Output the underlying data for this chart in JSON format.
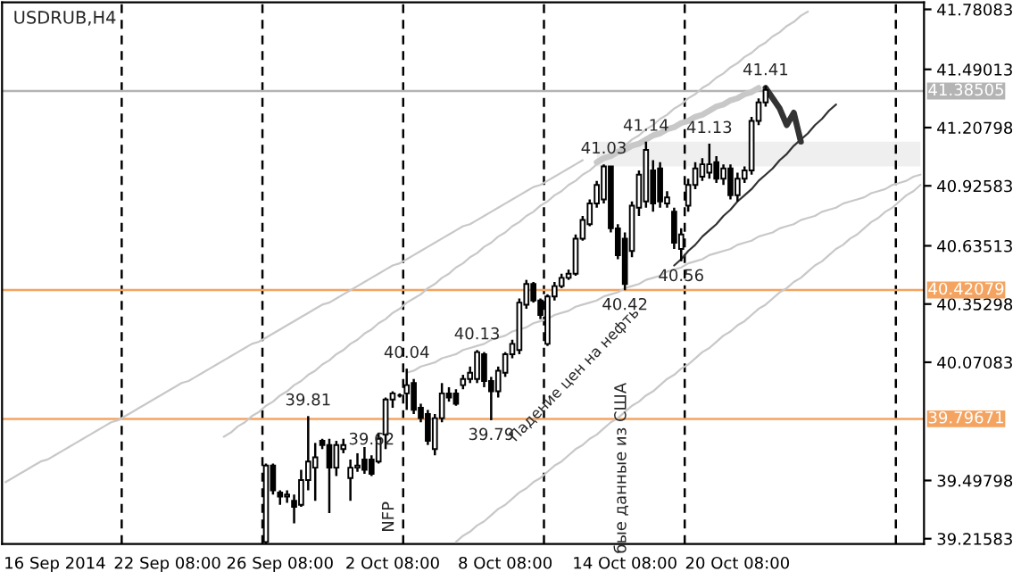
{
  "chart_data": {
    "type": "candlestick",
    "title": "USDRUB,H4",
    "categories": [
      null,
      null,
      null,
      null,
      null,
      null,
      null,
      "16 Sep 2014",
      null,
      null,
      null,
      null,
      null,
      null,
      null,
      null,
      null,
      null,
      null,
      null,
      null,
      null,
      null,
      "22 Sep 08:00",
      null,
      null,
      null,
      null,
      null,
      null,
      null,
      null,
      null,
      null,
      null,
      null,
      null,
      null,
      null,
      "26 Sep 08:00",
      null,
      null,
      null,
      null,
      null,
      null,
      null,
      null,
      null,
      null,
      null,
      null,
      null,
      null,
      null,
      "2 Oct 08:00",
      null,
      null,
      null,
      null,
      null,
      null,
      null,
      null,
      null,
      null,
      null,
      null,
      null,
      null,
      null,
      "8 Oct 08:00",
      null,
      null,
      null,
      null,
      null,
      null,
      null,
      null,
      null,
      null,
      null,
      null,
      null,
      null,
      null,
      null,
      "14 Oct 08:00",
      null,
      null,
      null,
      null,
      null,
      null,
      null,
      null,
      null,
      null,
      null,
      null,
      null,
      null,
      null,
      "20 Oct 08:00",
      null,
      null,
      null,
      null,
      null,
      null,
      null,
      null,
      null,
      null,
      null,
      null,
      null,
      null,
      null,
      null,
      null,
      null,
      null,
      null,
      null,
      null,
      null,
      null,
      null,
      null
    ],
    "ohlc": [
      null,
      null,
      null,
      null,
      null,
      null,
      null,
      null,
      null,
      null,
      null,
      null,
      null,
      null,
      null,
      null,
      null,
      null,
      null,
      null,
      null,
      null,
      null,
      null,
      null,
      null,
      null,
      null,
      null,
      null,
      null,
      null,
      null,
      null,
      null,
      null,
      null,
      [
        39.2,
        39.58,
        39.19,
        39.57
      ],
      [
        39.57,
        39.58,
        39.43,
        39.45
      ],
      [
        39.44,
        39.45,
        39.38,
        39.42
      ],
      [
        39.42,
        39.45,
        39.39,
        39.43
      ],
      [
        39.4,
        39.43,
        39.29,
        39.37
      ],
      [
        39.38,
        39.55,
        39.37,
        39.5
      ],
      [
        39.5,
        39.81,
        39.45,
        39.59
      ],
      [
        39.56,
        39.68,
        39.4,
        39.61
      ],
      [
        39.69,
        39.7,
        39.65,
        39.67
      ],
      [
        39.67,
        39.7,
        39.34,
        39.56
      ],
      [
        39.56,
        39.69,
        39.52,
        39.67
      ],
      [
        39.65,
        39.7,
        39.63,
        39.67
      ],
      [
        39.51,
        39.6,
        39.4,
        39.56
      ],
      [
        39.56,
        39.63,
        39.54,
        39.57
      ],
      [
        39.6,
        39.66,
        39.53,
        39.55
      ],
      [
        39.6,
        39.62,
        39.52,
        39.53
      ],
      [
        39.59,
        39.73,
        39.58,
        39.7
      ],
      [
        39.72,
        39.9,
        39.65,
        39.89
      ],
      [
        39.89,
        39.93,
        39.85,
        39.92
      ],
      [
        39.91,
        39.92,
        39.9,
        39.91
      ],
      [
        39.92,
        40.04,
        39.84,
        39.96
      ],
      [
        39.97,
        39.99,
        39.82,
        39.84
      ],
      [
        39.85,
        39.87,
        39.78,
        39.8
      ],
      [
        39.82,
        39.84,
        39.67,
        39.69
      ],
      [
        39.65,
        39.82,
        39.62,
        39.8
      ],
      [
        39.8,
        39.97,
        39.78,
        39.92
      ],
      [
        39.92,
        39.95,
        39.88,
        39.9
      ],
      [
        39.92,
        39.94,
        39.86,
        39.87
      ],
      [
        39.96,
        40.01,
        39.94,
        39.99
      ],
      [
        39.99,
        40.05,
        39.97,
        40.02
      ],
      [
        39.99,
        40.13,
        39.97,
        40.12
      ],
      [
        40.11,
        40.12,
        39.95,
        39.98
      ],
      [
        39.98,
        40.0,
        39.79,
        39.93
      ],
      [
        39.93,
        40.05,
        39.9,
        40.03
      ],
      [
        40.02,
        40.12,
        40.0,
        40.11
      ],
      [
        40.11,
        40.18,
        40.09,
        40.16
      ],
      [
        40.13,
        40.38,
        40.11,
        40.36
      ],
      [
        40.35,
        40.47,
        40.33,
        40.45
      ],
      [
        40.45,
        40.46,
        40.36,
        40.37
      ],
      [
        40.37,
        40.38,
        40.28,
        40.3
      ],
      [
        40.16,
        40.4,
        40.15,
        40.39
      ],
      [
        40.39,
        40.46,
        40.37,
        40.44
      ],
      [
        40.44,
        40.5,
        40.43,
        40.48
      ],
      [
        40.48,
        40.52,
        40.47,
        40.5
      ],
      [
        40.5,
        40.69,
        40.49,
        40.67
      ],
      [
        40.67,
        40.78,
        40.66,
        40.76
      ],
      [
        40.74,
        40.86,
        40.73,
        40.84
      ],
      [
        40.84,
        40.95,
        40.82,
        40.93
      ],
      [
        40.86,
        41.03,
        40.84,
        41.02
      ],
      [
        41.02,
        41.02,
        40.7,
        40.72
      ],
      [
        40.72,
        40.74,
        40.57,
        40.59
      ],
      [
        40.67,
        40.7,
        40.42,
        40.45
      ],
      [
        40.61,
        40.85,
        40.58,
        40.83
      ],
      [
        40.82,
        41.0,
        40.78,
        40.98
      ],
      [
        40.85,
        41.14,
        40.82,
        41.1
      ],
      [
        41.0,
        41.05,
        40.8,
        40.84
      ],
      [
        41.01,
        41.04,
        40.82,
        40.85
      ],
      [
        40.84,
        40.9,
        40.82,
        40.87
      ],
      [
        40.8,
        40.82,
        40.62,
        40.65
      ],
      [
        40.62,
        40.72,
        40.56,
        40.69
      ],
      [
        40.83,
        40.96,
        40.8,
        40.93
      ],
      [
        40.93,
        41.04,
        40.91,
        41.01
      ],
      [
        40.97,
        41.06,
        40.95,
        41.03
      ],
      [
        40.99,
        41.13,
        40.96,
        41.03
      ],
      [
        41.04,
        41.07,
        40.94,
        40.96
      ],
      [
        40.96,
        41.03,
        40.93,
        41.01
      ],
      [
        41.01,
        41.03,
        40.86,
        40.88
      ],
      [
        40.88,
        40.99,
        40.85,
        40.96
      ],
      [
        40.96,
        41.02,
        40.94,
        41.0
      ],
      [
        41.0,
        41.26,
        40.98,
        41.24
      ],
      [
        41.24,
        41.35,
        41.22,
        41.33
      ],
      [
        41.33,
        41.41,
        41.31,
        41.39
      ],
      null,
      null,
      null,
      null,
      null,
      null,
      null,
      null,
      null,
      null,
      null,
      null,
      null,
      null,
      null,
      null,
      null,
      null,
      null,
      null,
      null,
      null
    ],
    "series": [
      {
        "type": "line",
        "color": "#c8c8c8",
        "values": [
          null,
          null,
          null,
          null,
          null,
          null,
          null,
          null,
          null,
          null,
          null,
          null,
          null,
          null,
          null,
          null,
          null,
          null,
          null,
          null,
          null,
          null,
          null,
          null,
          null,
          null,
          null,
          null,
          null,
          null,
          null,
          39.71,
          39.73,
          39.76,
          39.78,
          39.81,
          39.83,
          39.86,
          39.88,
          39.91,
          39.93,
          39.96,
          39.98,
          40.01,
          40.03,
          40.06,
          40.08,
          40.11,
          40.13,
          40.16,
          40.18,
          40.21,
          40.23,
          40.26,
          40.28,
          40.31,
          40.33,
          40.36,
          40.38,
          40.4,
          40.43,
          40.45,
          40.48,
          40.5,
          40.53,
          40.55,
          40.58,
          40.6,
          40.63,
          40.65,
          40.68,
          40.7,
          40.73,
          40.75,
          40.78,
          40.8,
          40.83,
          40.85,
          40.88,
          40.9,
          40.93,
          40.95,
          40.98,
          41.0,
          41.03,
          41.05,
          41.08,
          41.1,
          41.12,
          41.15,
          41.17,
          41.2,
          41.22,
          41.25,
          41.27,
          41.3,
          41.32,
          41.35,
          41.37,
          41.4,
          41.42,
          41.45,
          41.47,
          41.5,
          41.52,
          41.55,
          41.57,
          41.6,
          41.62,
          41.65,
          41.67,
          41.7,
          41.72,
          41.75,
          41.77,
          null,
          null,
          null,
          null,
          null,
          null,
          null,
          null,
          null,
          null,
          null,
          null,
          null,
          null,
          null,
          null
        ]
      },
      {
        "type": "line",
        "color": "#c8c8c8",
        "values": [
          39.49,
          39.51,
          39.53,
          39.55,
          39.57,
          39.59,
          39.6,
          39.62,
          39.64,
          39.66,
          39.68,
          39.7,
          39.72,
          39.74,
          39.76,
          39.78,
          39.79,
          39.81,
          39.83,
          39.85,
          39.87,
          39.89,
          39.91,
          39.93,
          39.95,
          39.97,
          39.98,
          40.0,
          40.02,
          40.04,
          40.06,
          40.08,
          40.1,
          40.12,
          40.14,
          40.16,
          40.17,
          40.19,
          40.21,
          40.23,
          40.25,
          40.27,
          40.29,
          40.31,
          40.33,
          40.35,
          40.36,
          40.38,
          40.4,
          40.42,
          40.44,
          40.46,
          40.48,
          40.5,
          40.52,
          40.54,
          40.55,
          40.57,
          40.59,
          40.61,
          40.63,
          40.65,
          40.67,
          40.69,
          40.71,
          40.73,
          40.74,
          40.76,
          40.78,
          40.8,
          40.82,
          40.84,
          40.86,
          40.88,
          40.9,
          40.92,
          40.93,
          40.95,
          40.97,
          40.99,
          41.01,
          41.03,
          41.05,
          null,
          null,
          null,
          null,
          null,
          null,
          null,
          null,
          null,
          null,
          null,
          null,
          null,
          null,
          null,
          null,
          null,
          null,
          null,
          null,
          null,
          null,
          null,
          null,
          null,
          null,
          null,
          null,
          null,
          null,
          null,
          null,
          null,
          null,
          null,
          null,
          null,
          null,
          null,
          null,
          null,
          null,
          null,
          null,
          null,
          null,
          null,
          null
        ]
      },
      {
        "type": "line",
        "color": "#c8c8c8",
        "values": [
          null,
          null,
          null,
          null,
          null,
          null,
          null,
          null,
          null,
          null,
          null,
          null,
          null,
          null,
          null,
          null,
          null,
          null,
          null,
          null,
          null,
          null,
          null,
          null,
          null,
          null,
          null,
          null,
          null,
          null,
          null,
          null,
          null,
          null,
          null,
          null,
          null,
          null,
          null,
          null,
          null,
          null,
          null,
          null,
          null,
          null,
          null,
          null,
          null,
          null,
          null,
          null,
          null,
          null,
          null,
          null,
          null,
          null,
          null,
          null,
          null,
          null,
          null,
          null,
          null,
          null,
          null,
          null,
          null,
          null,
          null,
          null,
          null,
          null,
          null,
          null,
          null,
          null,
          null,
          null,
          null,
          null,
          null,
          null,
          41.04,
          41.06,
          41.07,
          41.09,
          41.1,
          41.12,
          41.13,
          41.15,
          41.17,
          41.18,
          41.2,
          41.21,
          41.23,
          41.24,
          41.26,
          41.27,
          41.29,
          41.31,
          41.32,
          41.34,
          41.35,
          41.37,
          41.38,
          41.4,
          null,
          null,
          null,
          null,
          null,
          null,
          null,
          null,
          null,
          null,
          null,
          null,
          null,
          null,
          null,
          null,
          null,
          null,
          null,
          null,
          null,
          null,
          null
        ]
      },
      {
        "type": "line",
        "color": "#c8c8c8",
        "values": [
          null,
          null,
          null,
          null,
          null,
          null,
          null,
          null,
          null,
          null,
          null,
          null,
          null,
          null,
          null,
          null,
          null,
          null,
          null,
          null,
          null,
          null,
          null,
          null,
          null,
          null,
          null,
          null,
          null,
          null,
          null,
          null,
          null,
          null,
          null,
          null,
          null,
          null,
          null,
          null,
          null,
          null,
          null,
          null,
          null,
          null,
          null,
          null,
          null,
          null,
          null,
          null,
          null,
          null,
          null,
          null,
          null,
          40.02,
          40.03,
          40.05,
          40.06,
          40.07,
          40.09,
          40.1,
          40.11,
          40.13,
          40.14,
          40.15,
          40.16,
          40.18,
          40.19,
          40.2,
          40.22,
          40.23,
          40.24,
          40.26,
          40.27,
          40.28,
          40.3,
          40.31,
          40.32,
          40.34,
          40.35,
          40.36,
          40.37,
          40.39,
          40.4,
          40.41,
          40.43,
          40.44,
          40.45,
          40.47,
          40.48,
          40.49,
          40.51,
          40.52,
          40.53,
          40.55,
          40.56,
          40.57,
          40.59,
          40.6,
          40.61,
          40.62,
          40.64,
          40.65,
          40.66,
          40.68,
          40.69,
          40.7,
          40.72,
          40.73,
          40.74,
          40.76,
          40.77,
          40.78,
          40.8,
          40.81,
          40.82,
          40.84,
          40.85,
          40.86,
          40.87,
          40.89,
          40.9,
          40.91,
          40.93,
          40.94,
          40.95,
          40.97,
          40.98
        ]
      },
      {
        "type": "line",
        "color": "#c8c8c8",
        "values": [
          null,
          null,
          null,
          null,
          null,
          null,
          null,
          null,
          null,
          null,
          null,
          null,
          null,
          null,
          null,
          null,
          null,
          null,
          null,
          null,
          null,
          null,
          null,
          null,
          null,
          null,
          null,
          null,
          null,
          null,
          null,
          null,
          null,
          null,
          null,
          null,
          null,
          null,
          null,
          null,
          null,
          null,
          null,
          null,
          null,
          null,
          null,
          null,
          null,
          null,
          null,
          null,
          null,
          null,
          null,
          null,
          null,
          null,
          null,
          null,
          null,
          null,
          null,
          null,
          39.2,
          39.23,
          39.25,
          39.28,
          39.3,
          39.33,
          39.36,
          39.38,
          39.41,
          39.44,
          39.46,
          39.49,
          39.51,
          39.54,
          39.57,
          39.59,
          39.62,
          39.65,
          39.67,
          39.7,
          39.72,
          39.75,
          39.78,
          39.8,
          39.83,
          39.86,
          39.88,
          39.91,
          39.93,
          39.96,
          39.99,
          40.01,
          40.04,
          40.06,
          40.09,
          40.12,
          40.14,
          40.17,
          40.2,
          40.22,
          40.25,
          40.27,
          40.3,
          40.33,
          40.35,
          40.38,
          40.41,
          40.43,
          40.46,
          40.48,
          40.51,
          40.54,
          40.56,
          40.59,
          40.62,
          40.64,
          40.67,
          40.69,
          40.72,
          40.75,
          40.77,
          40.8,
          40.82,
          40.85,
          40.88,
          40.9,
          40.93
        ]
      },
      {
        "type": "line",
        "color": "#333333",
        "values": [
          null,
          null,
          null,
          null,
          null,
          null,
          null,
          null,
          null,
          null,
          null,
          null,
          null,
          null,
          null,
          null,
          null,
          null,
          null,
          null,
          null,
          null,
          null,
          null,
          null,
          null,
          null,
          null,
          null,
          null,
          null,
          null,
          null,
          null,
          null,
          null,
          null,
          null,
          null,
          null,
          null,
          null,
          null,
          null,
          null,
          null,
          null,
          null,
          null,
          null,
          null,
          null,
          null,
          null,
          null,
          null,
          null,
          null,
          null,
          null,
          null,
          null,
          null,
          null,
          null,
          null,
          null,
          null,
          null,
          null,
          null,
          null,
          null,
          null,
          null,
          null,
          null,
          null,
          null,
          null,
          null,
          null,
          null,
          null,
          null,
          null,
          null,
          null,
          null,
          null,
          null,
          null,
          null,
          null,
          null,
          40.54,
          40.57,
          40.61,
          40.64,
          40.68,
          40.71,
          40.74,
          40.78,
          40.81,
          40.85,
          40.88,
          40.91,
          40.95,
          40.98,
          41.01,
          41.05,
          41.08,
          41.12,
          41.15,
          41.18,
          41.22,
          41.25,
          41.29,
          41.32,
          null,
          null,
          null,
          null,
          null,
          null,
          null,
          null,
          null,
          null,
          null,
          null
        ]
      },
      {
        "type": "line",
        "color": "#333333",
        "values": [
          null,
          null,
          null,
          null,
          null,
          null,
          null,
          null,
          null,
          null,
          null,
          null,
          null,
          null,
          null,
          null,
          null,
          null,
          null,
          null,
          null,
          null,
          null,
          null,
          null,
          null,
          null,
          null,
          null,
          null,
          null,
          null,
          null,
          null,
          null,
          null,
          null,
          null,
          null,
          null,
          null,
          null,
          null,
          null,
          null,
          null,
          null,
          null,
          null,
          null,
          null,
          null,
          null,
          null,
          null,
          null,
          null,
          null,
          null,
          null,
          null,
          null,
          null,
          null,
          null,
          null,
          null,
          null,
          null,
          null,
          null,
          null,
          null,
          null,
          null,
          null,
          null,
          null,
          null,
          null,
          null,
          null,
          null,
          null,
          null,
          null,
          null,
          null,
          null,
          null,
          null,
          null,
          null,
          null,
          null,
          null,
          null,
          null,
          null,
          null,
          null,
          null,
          null,
          null,
          null,
          null,
          null,
          null,
          41.4,
          41.35,
          41.3,
          41.22,
          41.28,
          41.14,
          null,
          null,
          null,
          null,
          null,
          null,
          null,
          null,
          null,
          null,
          null,
          null,
          null,
          null,
          null,
          null,
          null
        ]
      },
      {
        "type": "line",
        "color": "#efefef",
        "values": [
          null,
          null,
          null,
          null,
          null,
          null,
          null,
          null,
          null,
          null,
          null,
          null,
          null,
          null,
          null,
          null,
          null,
          null,
          null,
          null,
          null,
          null,
          null,
          null,
          null,
          null,
          null,
          null,
          null,
          null,
          null,
          null,
          null,
          null,
          null,
          null,
          null,
          null,
          null,
          null,
          null,
          null,
          null,
          null,
          null,
          null,
          null,
          null,
          null,
          null,
          null,
          null,
          null,
          null,
          null,
          null,
          null,
          null,
          null,
          null,
          null,
          null,
          null,
          null,
          null,
          null,
          null,
          null,
          null,
          null,
          null,
          null,
          null,
          null,
          null,
          null,
          null,
          null,
          null,
          null,
          null,
          null,
          null,
          null,
          null,
          null,
          null,
          null,
          null,
          null,
          null,
          null,
          null,
          null,
          null,
          null,
          null,
          null,
          null,
          null,
          null,
          null,
          null,
          null,
          null,
          null,
          null,
          null,
          null,
          null,
          null,
          null,
          null,
          null,
          null,
          null,
          null,
          null,
          null,
          null,
          null,
          null,
          null,
          null,
          null,
          null,
          null,
          null,
          null,
          null,
          null
        ],
        "lower": [
          null,
          null,
          null,
          null,
          null,
          null,
          null,
          null,
          null,
          null,
          null,
          null,
          null,
          null,
          null,
          null,
          null,
          null,
          null,
          null,
          null,
          null,
          null,
          null,
          null,
          null,
          null,
          null,
          null,
          null,
          null,
          null,
          null,
          null,
          null,
          null,
          null,
          null,
          null,
          null,
          null,
          null,
          null,
          null,
          null,
          null,
          null,
          null,
          null,
          null,
          null,
          null,
          null,
          null,
          null,
          null,
          null,
          null,
          null,
          null,
          null,
          null,
          null,
          null,
          null,
          null,
          null,
          null,
          null,
          null,
          null,
          null,
          null,
          null,
          null,
          null,
          null,
          null,
          null,
          null,
          null,
          null,
          null,
          null,
          41.02,
          41.02,
          41.02,
          41.02,
          41.02,
          41.02,
          41.02,
          41.02,
          41.02,
          41.02,
          41.02,
          41.02,
          41.02,
          41.02,
          41.02,
          41.02,
          41.02,
          41.02,
          41.02,
          41.02,
          41.02,
          41.02,
          41.02,
          41.02,
          41.02,
          41.02,
          41.02,
          41.02,
          41.02,
          41.02,
          41.02,
          41.02,
          41.02,
          41.02,
          41.02,
          41.02,
          41.02,
          41.02,
          41.02,
          41.02,
          41.02,
          41.02,
          41.02,
          41.02,
          41.02,
          41.02,
          41.02
        ],
        "upper": [
          null,
          null,
          null,
          null,
          null,
          null,
          null,
          null,
          null,
          null,
          null,
          null,
          null,
          null,
          null,
          null,
          null,
          null,
          null,
          null,
          null,
          null,
          null,
          null,
          null,
          null,
          null,
          null,
          null,
          null,
          null,
          null,
          null,
          null,
          null,
          null,
          null,
          null,
          null,
          null,
          null,
          null,
          null,
          null,
          null,
          null,
          null,
          null,
          null,
          null,
          null,
          null,
          null,
          null,
          null,
          null,
          null,
          null,
          null,
          null,
          null,
          null,
          null,
          null,
          null,
          null,
          null,
          null,
          null,
          null,
          null,
          null,
          null,
          null,
          null,
          null,
          null,
          null,
          null,
          null,
          null,
          null,
          null,
          null,
          41.14,
          41.14,
          41.14,
          41.14,
          41.14,
          41.14,
          41.14,
          41.14,
          41.14,
          41.14,
          41.14,
          41.14,
          41.14,
          41.14,
          41.14,
          41.14,
          41.14,
          41.14,
          41.14,
          41.14,
          41.14,
          41.14,
          41.14,
          41.14,
          41.14,
          41.14,
          41.14,
          41.14,
          41.14,
          41.14,
          41.14,
          41.14,
          41.14,
          41.14,
          41.14,
          41.14,
          41.14,
          41.14,
          41.14,
          41.14,
          41.14,
          41.14,
          41.14,
          41.14,
          41.14,
          41.14,
          41.14
        ]
      }
    ],
    "ylim": [
      39.19,
      41.815
    ],
    "yticks": [
      41.78083,
      41.49013,
      41.20798,
      40.92583,
      40.63513,
      40.35298,
      40.07083,
      39.49798,
      39.21583
    ],
    "ref_lines": [
      {
        "axis": "y",
        "value": 40.42079,
        "label": "40.42079",
        "color": "#f4a460"
      },
      {
        "axis": "y",
        "value": 39.79671,
        "label": "39.79671",
        "color": "#f4a460"
      },
      {
        "axis": "y",
        "value": 41.38505,
        "label": "41.38505",
        "color": "#b4b4b4"
      }
    ],
    "annotations": [
      {
        "text": "39.81",
        "y": 39.81
      },
      {
        "text": "40.04",
        "y": 40.04
      },
      {
        "text": "39.62",
        "y": 39.62
      },
      {
        "text": "40.13",
        "y": 40.13
      },
      {
        "text": "39.79",
        "y": 39.79
      },
      {
        "text": "41.03",
        "y": 41.03
      },
      {
        "text": "40.42",
        "y": 40.42
      },
      {
        "text": "41.14",
        "y": 41.14
      },
      {
        "text": "40.56",
        "y": 40.56
      },
      {
        "text": "41.13",
        "y": 41.13
      },
      {
        "text": "41.41",
        "y": 41.41
      },
      "NFP",
      "Падение цен на нефть",
      "бые данные из США"
    ],
    "grid": false,
    "legend": false
  }
}
